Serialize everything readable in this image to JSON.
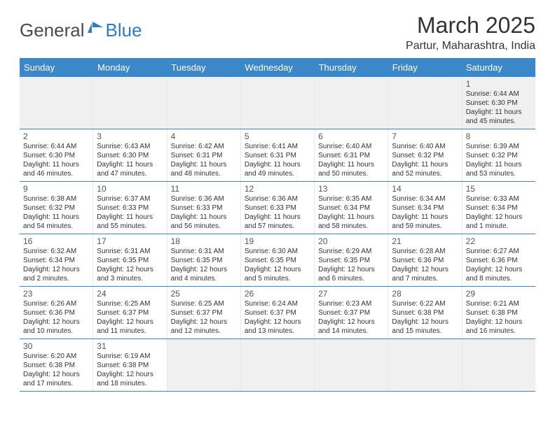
{
  "logo": {
    "left": "General",
    "right": "Blue"
  },
  "title": "March 2025",
  "location": "Partur, Maharashtra, India",
  "colors": {
    "header_bg": "#3c87c7",
    "header_text": "#ffffff",
    "border": "#3c87c7",
    "empty_bg": "#f0f0f0",
    "body_text": "#333333",
    "logo_gray": "#4a4a4a",
    "logo_blue": "#2d7bc0"
  },
  "weekdays": [
    "Sunday",
    "Monday",
    "Tuesday",
    "Wednesday",
    "Thursday",
    "Friday",
    "Saturday"
  ],
  "weeks": [
    [
      null,
      null,
      null,
      null,
      null,
      null,
      {
        "d": "1",
        "sr": "6:44 AM",
        "ss": "6:30 PM",
        "dl": "11 hours and 45 minutes."
      }
    ],
    [
      {
        "d": "2",
        "sr": "6:44 AM",
        "ss": "6:30 PM",
        "dl": "11 hours and 46 minutes."
      },
      {
        "d": "3",
        "sr": "6:43 AM",
        "ss": "6:30 PM",
        "dl": "11 hours and 47 minutes."
      },
      {
        "d": "4",
        "sr": "6:42 AM",
        "ss": "6:31 PM",
        "dl": "11 hours and 48 minutes."
      },
      {
        "d": "5",
        "sr": "6:41 AM",
        "ss": "6:31 PM",
        "dl": "11 hours and 49 minutes."
      },
      {
        "d": "6",
        "sr": "6:40 AM",
        "ss": "6:31 PM",
        "dl": "11 hours and 50 minutes."
      },
      {
        "d": "7",
        "sr": "6:40 AM",
        "ss": "6:32 PM",
        "dl": "11 hours and 52 minutes."
      },
      {
        "d": "8",
        "sr": "6:39 AM",
        "ss": "6:32 PM",
        "dl": "11 hours and 53 minutes."
      }
    ],
    [
      {
        "d": "9",
        "sr": "6:38 AM",
        "ss": "6:32 PM",
        "dl": "11 hours and 54 minutes."
      },
      {
        "d": "10",
        "sr": "6:37 AM",
        "ss": "6:33 PM",
        "dl": "11 hours and 55 minutes."
      },
      {
        "d": "11",
        "sr": "6:36 AM",
        "ss": "6:33 PM",
        "dl": "11 hours and 56 minutes."
      },
      {
        "d": "12",
        "sr": "6:36 AM",
        "ss": "6:33 PM",
        "dl": "11 hours and 57 minutes."
      },
      {
        "d": "13",
        "sr": "6:35 AM",
        "ss": "6:34 PM",
        "dl": "11 hours and 58 minutes."
      },
      {
        "d": "14",
        "sr": "6:34 AM",
        "ss": "6:34 PM",
        "dl": "11 hours and 59 minutes."
      },
      {
        "d": "15",
        "sr": "6:33 AM",
        "ss": "6:34 PM",
        "dl": "12 hours and 1 minute."
      }
    ],
    [
      {
        "d": "16",
        "sr": "6:32 AM",
        "ss": "6:34 PM",
        "dl": "12 hours and 2 minutes."
      },
      {
        "d": "17",
        "sr": "6:31 AM",
        "ss": "6:35 PM",
        "dl": "12 hours and 3 minutes."
      },
      {
        "d": "18",
        "sr": "6:31 AM",
        "ss": "6:35 PM",
        "dl": "12 hours and 4 minutes."
      },
      {
        "d": "19",
        "sr": "6:30 AM",
        "ss": "6:35 PM",
        "dl": "12 hours and 5 minutes."
      },
      {
        "d": "20",
        "sr": "6:29 AM",
        "ss": "6:35 PM",
        "dl": "12 hours and 6 minutes."
      },
      {
        "d": "21",
        "sr": "6:28 AM",
        "ss": "6:36 PM",
        "dl": "12 hours and 7 minutes."
      },
      {
        "d": "22",
        "sr": "6:27 AM",
        "ss": "6:36 PM",
        "dl": "12 hours and 8 minutes."
      }
    ],
    [
      {
        "d": "23",
        "sr": "6:26 AM",
        "ss": "6:36 PM",
        "dl": "12 hours and 10 minutes."
      },
      {
        "d": "24",
        "sr": "6:25 AM",
        "ss": "6:37 PM",
        "dl": "12 hours and 11 minutes."
      },
      {
        "d": "25",
        "sr": "6:25 AM",
        "ss": "6:37 PM",
        "dl": "12 hours and 12 minutes."
      },
      {
        "d": "26",
        "sr": "6:24 AM",
        "ss": "6:37 PM",
        "dl": "12 hours and 13 minutes."
      },
      {
        "d": "27",
        "sr": "6:23 AM",
        "ss": "6:37 PM",
        "dl": "12 hours and 14 minutes."
      },
      {
        "d": "28",
        "sr": "6:22 AM",
        "ss": "6:38 PM",
        "dl": "12 hours and 15 minutes."
      },
      {
        "d": "29",
        "sr": "6:21 AM",
        "ss": "6:38 PM",
        "dl": "12 hours and 16 minutes."
      }
    ],
    [
      {
        "d": "30",
        "sr": "6:20 AM",
        "ss": "6:38 PM",
        "dl": "12 hours and 17 minutes."
      },
      {
        "d": "31",
        "sr": "6:19 AM",
        "ss": "6:38 PM",
        "dl": "12 hours and 18 minutes."
      },
      null,
      null,
      null,
      null,
      null
    ]
  ],
  "labels": {
    "sunrise": "Sunrise:",
    "sunset": "Sunset:",
    "daylight": "Daylight:"
  }
}
